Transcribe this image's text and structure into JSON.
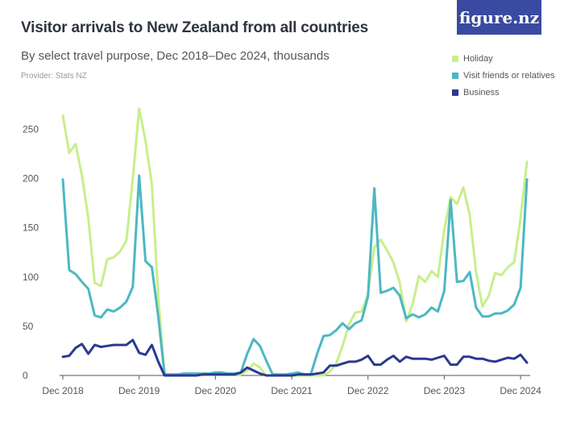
{
  "header": {
    "title": "Visitor arrivals to New Zealand from all countries",
    "subtitle": "By select travel purpose, Dec 2018–Dec 2024, thousands",
    "provider": "Provider: Stats NZ",
    "logo": "figure.nz"
  },
  "chart_data": {
    "type": "line",
    "title": "Visitor arrivals to New Zealand from all countries",
    "subtitle": "By select travel purpose, Dec 2018–Dec 2024, thousands",
    "xlabel": "",
    "ylabel": "",
    "x_ticks": [
      "Dec 2018",
      "Dec 2019",
      "Dec 2020",
      "Dec 2021",
      "Dec 2022",
      "Dec 2023",
      "Dec 2024"
    ],
    "y_ticks": [
      0,
      50,
      100,
      150,
      200,
      250
    ],
    "ylim": [
      0,
      265
    ],
    "grid": false,
    "legend_position": "top-right",
    "x_start": "Dec 2018",
    "x_end": "Dec 2024",
    "series": [
      {
        "name": "Holiday",
        "color": "#c9ee8a",
        "values": [
          264,
          226,
          235,
          203,
          160,
          94,
          91,
          118,
          120,
          126,
          137,
          200,
          271,
          238,
          194,
          80,
          1,
          1,
          1,
          1,
          1,
          1,
          1,
          1,
          1,
          1,
          1,
          1,
          1,
          5,
          12,
          8,
          0,
          0,
          0,
          0,
          0,
          0,
          0,
          0,
          0,
          0,
          4,
          12,
          30,
          52,
          64,
          65,
          83,
          130,
          138,
          127,
          115,
          94,
          55,
          72,
          101,
          95,
          106,
          100,
          148,
          181,
          174,
          191,
          163,
          105,
          70,
          81,
          104,
          102,
          110,
          115,
          160,
          217
        ]
      },
      {
        "name": "Visit friends or relatives",
        "color": "#4bb8c3",
        "values": [
          199,
          107,
          103,
          95,
          88,
          61,
          59,
          67,
          65,
          69,
          75,
          90,
          203,
          116,
          110,
          60,
          1,
          1,
          1,
          2,
          2,
          2,
          2,
          2,
          3,
          3,
          2,
          2,
          3,
          22,
          37,
          30,
          15,
          1,
          1,
          1,
          2,
          3,
          1,
          1,
          22,
          40,
          41,
          46,
          53,
          47,
          53,
          56,
          80,
          190,
          84,
          86,
          89,
          81,
          58,
          62,
          59,
          62,
          69,
          65,
          86,
          178,
          95,
          96,
          105,
          69,
          60,
          60,
          63,
          63,
          66,
          72,
          89,
          199
        ]
      },
      {
        "name": "Business",
        "color": "#2b3990",
        "values": [
          19,
          20,
          28,
          32,
          22,
          31,
          29,
          30,
          31,
          31,
          31,
          36,
          23,
          21,
          31,
          14,
          0,
          0,
          0,
          0,
          0,
          0,
          1,
          1,
          1,
          1,
          1,
          1,
          3,
          8,
          5,
          2,
          0,
          0,
          0,
          0,
          0,
          1,
          1,
          1,
          2,
          3,
          10,
          10,
          12,
          14,
          14,
          16,
          20,
          11,
          11,
          16,
          20,
          14,
          19,
          17,
          17,
          17,
          16,
          18,
          20,
          11,
          11,
          19,
          19,
          17,
          17,
          15,
          14,
          16,
          18,
          17,
          21,
          13
        ]
      }
    ]
  }
}
